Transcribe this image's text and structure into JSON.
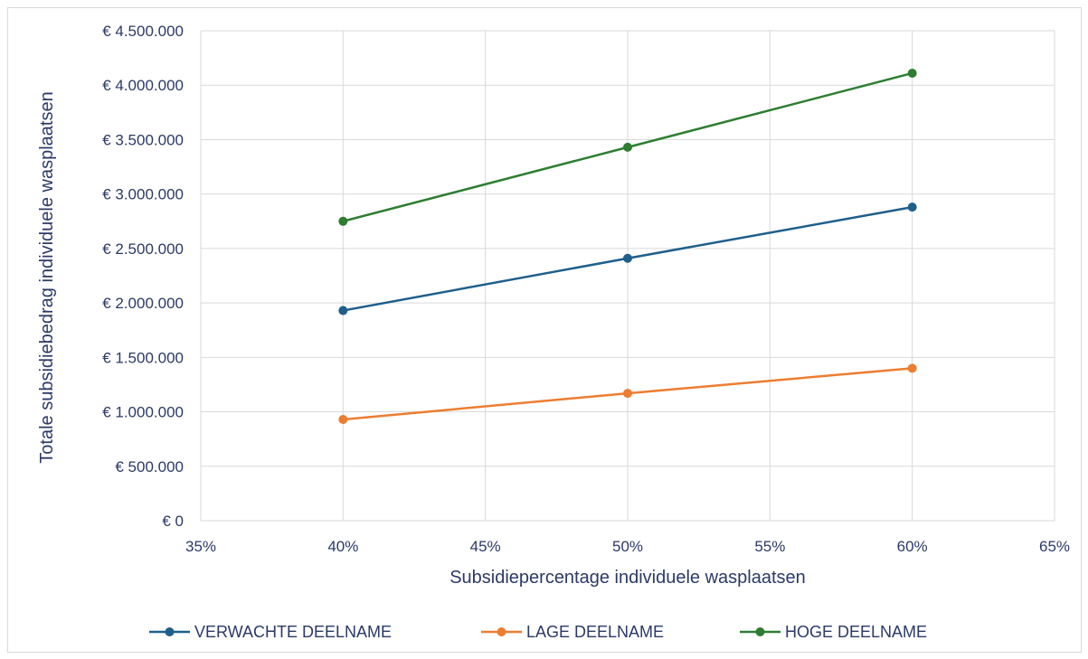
{
  "chart_data": {
    "type": "line",
    "title": "",
    "xlabel": "Subsidiepercentage individuele wasplaatsen",
    "ylabel": "Totale subsidiebedrag individuele wasplaatsen",
    "xlim": [
      35,
      65
    ],
    "ylim": [
      0,
      4500000
    ],
    "x_ticks": [
      35,
      40,
      45,
      50,
      55,
      60,
      65
    ],
    "x_tick_labels": [
      "35%",
      "40%",
      "45%",
      "50%",
      "55%",
      "60%",
      "65%"
    ],
    "y_ticks": [
      0,
      500000,
      1000000,
      1500000,
      2000000,
      2500000,
      3000000,
      3500000,
      4000000,
      4500000
    ],
    "y_tick_labels": [
      "€ 0",
      "€ 500.000",
      "€ 1.000.000",
      "€ 1.500.000",
      "€ 2.000.000",
      "€ 2.500.000",
      "€ 3.000.000",
      "€ 3.500.000",
      "€ 4.000.000",
      "€ 4.500.000"
    ],
    "grid": true,
    "legend_position": "bottom",
    "series": [
      {
        "name": "VERWACHTE DEELNAME",
        "color": "#1f5f8b",
        "x": [
          40,
          50,
          60
        ],
        "y": [
          1930000,
          2410000,
          2880000
        ]
      },
      {
        "name": "LAGE DEELNAME",
        "color": "#ed7d31",
        "x": [
          40,
          50,
          60
        ],
        "y": [
          930000,
          1170000,
          1400000
        ]
      },
      {
        "name": "HOGE DEELNAME",
        "color": "#2e7d32",
        "x": [
          40,
          50,
          60
        ],
        "y": [
          2750000,
          3430000,
          4110000
        ]
      }
    ]
  }
}
